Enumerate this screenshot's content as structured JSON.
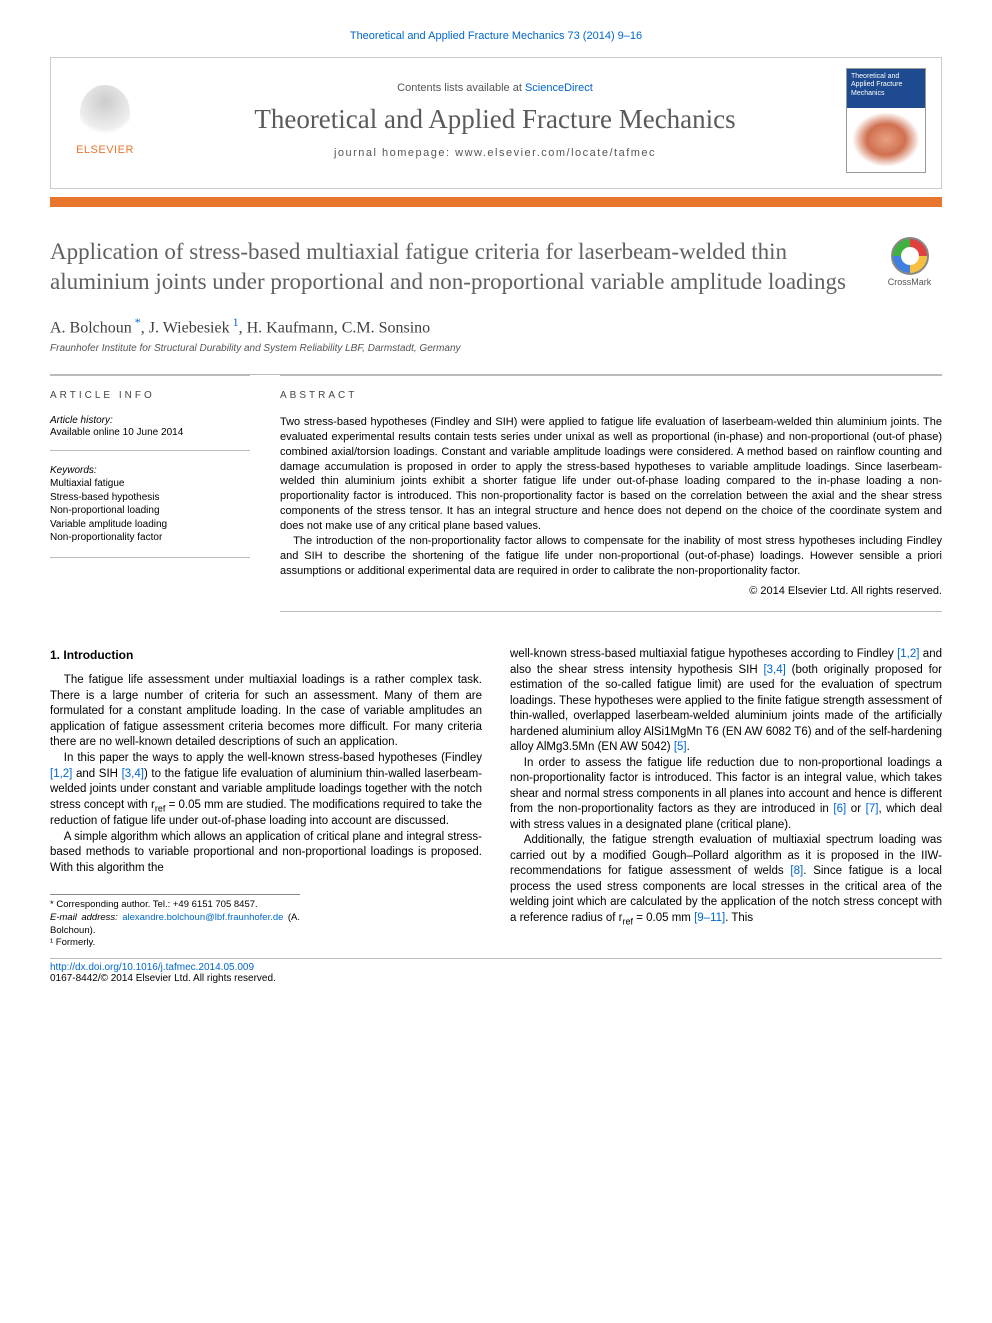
{
  "header": {
    "citation": "Theoretical and Applied Fracture Mechanics 73 (2014) 9–16",
    "contents_avail_prefix": "Contents lists available at ",
    "contents_avail_link": "ScienceDirect",
    "journal_name": "Theoretical and Applied Fracture Mechanics",
    "homepage_prefix": "journal homepage: ",
    "homepage_url": "www.elsevier.com/locate/tafmec",
    "publisher_logo_label": "ELSEVIER",
    "cover_title": "Theoretical and Applied Fracture Mechanics",
    "crossmark_label": "CrossMark",
    "orange_bar_color": "#e8762d"
  },
  "article": {
    "title": "Application of stress-based multiaxial fatigue criteria for laserbeam-welded thin aluminium joints under proportional and non-proportional variable amplitude loadings",
    "authors_html": "A. Bolchoun *, J. Wiebesiek ¹, H. Kaufmann, C.M. Sonsino",
    "author_1": "A. Bolchoun",
    "author_1_marker": "*",
    "author_2": "J. Wiebesiek",
    "author_2_marker": "1",
    "author_3": "H. Kaufmann",
    "author_4": "C.M. Sonsino",
    "affiliation": "Fraunhofer Institute for Structural Durability and System Reliability LBF, Darmstadt, Germany"
  },
  "info": {
    "section_label": "article info",
    "history_label": "Article history:",
    "available_online": "Available online 10 June 2014",
    "keywords_label": "Keywords:",
    "keywords": [
      "Multiaxial fatigue",
      "Stress-based hypothesis",
      "Non-proportional loading",
      "Variable amplitude loading",
      "Non-proportionality factor"
    ]
  },
  "abstract": {
    "section_label": "abstract",
    "p1": "Two stress-based hypotheses (Findley and SIH) were applied to fatigue life evaluation of laserbeam-welded thin aluminium joints. The evaluated experimental results contain tests series under unixal as well as proportional (in-phase) and non-proportional (out-of phase) combined axial/torsion loadings. Constant and variable amplitude loadings were considered. A method based on rainflow counting and damage accumulation is proposed in order to apply the stress-based hypotheses to variable amplitude loadings. Since laserbeam-welded thin aluminium joints exhibit a shorter fatigue life under out-of-phase loading compared to the in-phase loading a non-proportionality factor is introduced. This non-proportionality factor is based on the correlation between the axial and the shear stress components of the stress tensor. It has an integral structure and hence does not depend on the choice of the coordinate system and does not make use of any critical plane based values.",
    "p2": "The introduction of the non-proportionality factor allows to compensate for the inability of most stress hypotheses including Findley and SIH to describe the shortening of the fatigue life under non-proportional (out-of-phase) loadings. However sensible a priori assumptions or additional experimental data are required in order to calibrate the non-proportionality factor.",
    "copyright": "© 2014 Elsevier Ltd. All rights reserved."
  },
  "body": {
    "section_number": "1.",
    "section_title": "Introduction",
    "p1": "The fatigue life assessment under multiaxial loadings is a rather complex task. There is a large number of criteria for such an assessment. Many of them are formulated for a constant amplitude loading. In the case of variable amplitudes an application of fatigue assessment criteria becomes more difficult. For many criteria there are no well-known detailed descriptions of such an application.",
    "p2_a": "In this paper the ways to apply the well-known stress-based hypotheses (Findley ",
    "p2_ref1": "[1,2]",
    "p2_b": " and SIH ",
    "p2_ref2": "[3,4]",
    "p2_c": ") to the fatigue life evaluation of aluminium thin-walled laserbeam-welded joints under constant and variable amplitude loadings together with the notch stress concept with r",
    "p2_sub": "ref",
    "p2_d": " = 0.05 mm are studied. The modifications required to take the reduction of fatigue life under out-of-phase loading into account are discussed.",
    "p3": "A simple algorithm which allows an application of critical plane and integral stress-based methods to variable proportional and non-proportional loadings is proposed. With this algorithm the",
    "p4_a": "well-known stress-based multiaxial fatigue hypotheses according to Findley ",
    "p4_ref1": "[1,2]",
    "p4_b": " and also the shear stress intensity hypothesis SIH ",
    "p4_ref2": "[3,4]",
    "p4_c": " (both originally proposed for estimation of the so-called fatigue limit) are used for the evaluation of spectrum loadings. These hypotheses were applied to the finite fatigue strength assessment of thin-walled, overlapped laserbeam-welded aluminium joints made of the artificially hardened aluminium alloy AlSi1MgMn T6 (EN AW 6082 T6) and of the self-hardening alloy AlMg3.5Mn (EN AW 5042) ",
    "p4_ref3": "[5]",
    "p4_d": ".",
    "p5_a": "In order to assess the fatigue life reduction due to non-proportional loadings a non-proportionality factor is introduced. This factor is an integral value, which takes shear and normal stress components in all planes into account and hence is different from the non-proportionality factors as they are introduced in ",
    "p5_ref1": "[6]",
    "p5_b": " or ",
    "p5_ref2": "[7]",
    "p5_c": ", which deal with stress values in a designated plane (critical plane).",
    "p6_a": "Additionally, the fatigue strength evaluation of multiaxial spectrum loading was carried out by a modified Gough–Pollard algorithm as it is proposed in the IIW-recommendations for fatigue assessment of welds ",
    "p6_ref1": "[8]",
    "p6_b": ". Since fatigue is a local process the used stress components are local stresses in the critical area of the welding joint which are calculated by the application of the notch stress concept with a reference radius of r",
    "p6_sub": "ref",
    "p6_c": " = 0.05 mm ",
    "p6_ref2": "[9–11]",
    "p6_d": ". This"
  },
  "footnotes": {
    "corresponding": "* Corresponding author. Tel.: +49 6151 705 8457.",
    "email_label": "E-mail address: ",
    "email": "alexandre.bolchoun@lbf.fraunhofer.de",
    "email_suffix": " (A. Bolchoun).",
    "formerly": "¹ Formerly."
  },
  "footer": {
    "doi": "http://dx.doi.org/10.1016/j.tafmec.2014.05.009",
    "issn_line": "0167-8442/© 2014 Elsevier Ltd. All rights reserved."
  },
  "colors": {
    "link": "#0066cc",
    "accent": "#e8762d",
    "text_gray": "#606060"
  }
}
